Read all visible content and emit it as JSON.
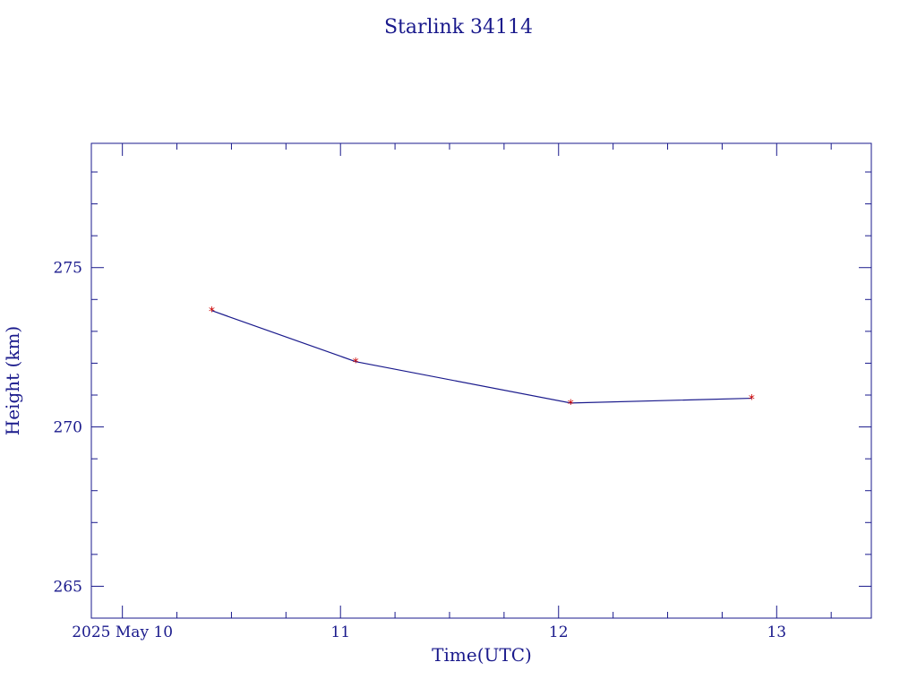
{
  "chart_data": {
    "type": "line",
    "title": "Starlink 34114",
    "xlabel": "Time(UTC)",
    "ylabel": "Height (km)",
    "x_tick_labels": [
      {
        "t": "2025-05-10",
        "label": "2025 May 10"
      },
      {
        "t": "2025-05-11",
        "label": "11"
      },
      {
        "t": "2025-05-12",
        "label": "12"
      },
      {
        "t": "2025-05-13",
        "label": "13"
      }
    ],
    "xlim": [
      "2025-05-09 20:35",
      "2025-05-13 10:25"
    ],
    "ylim": [
      264.0,
      278.9
    ],
    "y_major_ticks": [
      265,
      270,
      275
    ],
    "y_minor_step": 1,
    "x_minor_step_hours": 6,
    "grid": false,
    "line_color": "#1a1a8c",
    "marker_color": "#cc0000",
    "axis_color": "#1a1a8c",
    "series": [
      {
        "x": [
          "2025-05-10 09:50",
          "2025-05-11 01:40",
          "2025-05-12 01:20",
          "2025-05-12 21:15"
        ],
        "y": [
          273.65,
          272.05,
          270.75,
          270.9
        ]
      }
    ]
  }
}
